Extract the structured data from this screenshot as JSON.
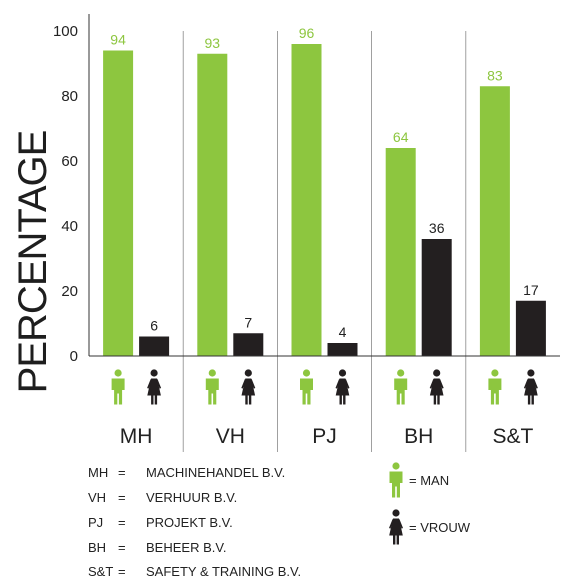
{
  "chart_data": {
    "type": "bar",
    "ylabel": "PERCENTAGE",
    "ylim": [
      0,
      100
    ],
    "yticks": [
      0,
      20,
      40,
      60,
      80,
      100
    ],
    "categories": [
      "MH",
      "VH",
      "PJ",
      "BH",
      "S&T"
    ],
    "series": [
      {
        "name": "MAN",
        "color": "#8dc63f",
        "icon": "man-icon",
        "values": [
          94,
          93,
          96,
          64,
          83
        ]
      },
      {
        "name": "VROUW",
        "color": "#231f20",
        "icon": "woman-icon",
        "values": [
          6,
          7,
          4,
          36,
          17
        ]
      }
    ],
    "grid": false
  },
  "abbreviations": [
    {
      "abbr": "MH",
      "eq": "=",
      "full": "MACHINEHANDEL B.V."
    },
    {
      "abbr": "VH",
      "eq": "=",
      "full": "VERHUUR B.V."
    },
    {
      "abbr": "PJ",
      "eq": "=",
      "full": "PROJEKT B.V."
    },
    {
      "abbr": "BH",
      "eq": "=",
      "full": "BEHEER B.V."
    },
    {
      "abbr": "S&T",
      "eq": "=",
      "full": "SAFETY & TRAINING B.V."
    }
  ],
  "gender_legend": [
    {
      "label": "= MAN",
      "icon": "man-icon",
      "color": "#8dc63f"
    },
    {
      "label": "= VROUW",
      "icon": "woman-icon",
      "color": "#231f20"
    }
  ]
}
